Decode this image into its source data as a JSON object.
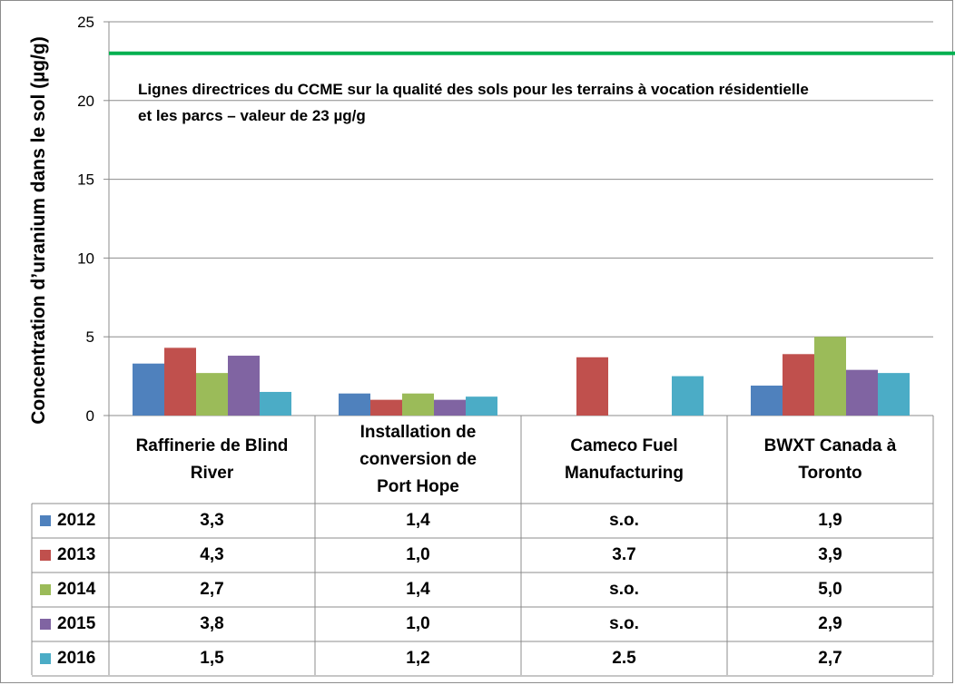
{
  "chart_data": {
    "type": "bar",
    "ylabel": "Concentration d’uranium dans le sol (µg/g)",
    "xlabel": "",
    "ylim": [
      0,
      25
    ],
    "yticks": [
      0,
      5,
      10,
      15,
      20,
      25
    ],
    "grid": true,
    "legend": "data-table",
    "categories": [
      [
        "Raffinerie de Blind",
        "River"
      ],
      [
        "Installation de",
        "conversion de",
        "Port Hope"
      ],
      [
        "Cameco Fuel",
        "Manufacturing"
      ],
      [
        "BWXT Canada à",
        "Toronto"
      ]
    ],
    "series": [
      {
        "name": "2012",
        "color": "#4f81bd",
        "values": [
          3.3,
          1.4,
          null,
          1.9
        ],
        "labels": [
          "3,3",
          "1,4",
          "s.o.",
          "1,9"
        ]
      },
      {
        "name": "2013",
        "color": "#c0504d",
        "values": [
          4.3,
          1.0,
          3.7,
          3.9
        ],
        "labels": [
          "4,3",
          "1,0",
          "3.7",
          "3,9"
        ]
      },
      {
        "name": "2014",
        "color": "#9bbb59",
        "values": [
          2.7,
          1.4,
          null,
          5.0
        ],
        "labels": [
          "2,7",
          "1,4",
          "s.o.",
          "5,0"
        ]
      },
      {
        "name": "2015",
        "color": "#8064a2",
        "values": [
          3.8,
          1.0,
          null,
          2.9
        ],
        "labels": [
          "3,8",
          "1,0",
          "s.o.",
          "2,9"
        ]
      },
      {
        "name": "2016",
        "color": "#4bacc6",
        "values": [
          1.5,
          1.2,
          2.5,
          2.7
        ],
        "labels": [
          "1,5",
          "1,2",
          "2.5",
          "2,7"
        ]
      }
    ],
    "reference_line": {
      "value": 23,
      "color": "#00b050",
      "annotation": [
        "Lignes directrices du CCME sur la qualité des sols pour les terrains à vocation résidentielle",
        "et les parcs – valeur de 23 µg/g"
      ]
    }
  }
}
